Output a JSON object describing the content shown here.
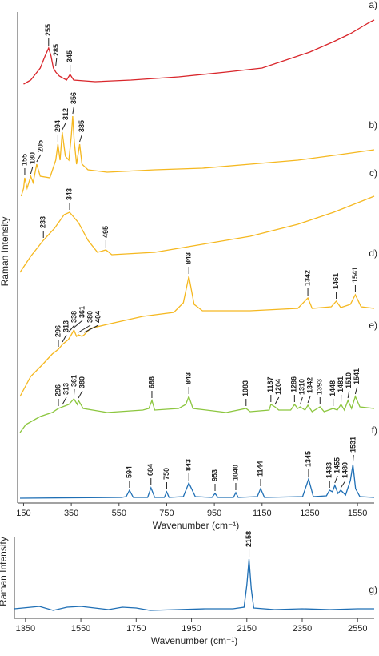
{
  "chart_data": [
    {
      "type": "line",
      "xlabel": "Wavenumber (cm⁻¹)",
      "ylabel": "Raman Intensity",
      "xlim": [
        125,
        1620
      ],
      "ylim": [
        0,
        625
      ],
      "xticks": [
        150,
        350,
        550,
        750,
        950,
        1150,
        1350,
        1550
      ],
      "series": [
        {
          "name": "a)",
          "color": "#d9262b",
          "x": [
            150,
            180,
            220,
            240,
            255,
            265,
            275,
            285,
            300,
            330,
            345,
            360,
            450,
            600,
            800,
            1000,
            1150,
            1250,
            1350,
            1450,
            1520,
            1560,
            1600,
            1620
          ],
          "values": [
            520,
            525,
            540,
            555,
            565,
            555,
            540,
            535,
            530,
            525,
            532,
            525,
            523,
            525,
            529,
            535,
            540,
            550,
            560,
            573,
            583,
            590,
            597,
            600
          ],
          "peaks": [
            255,
            285,
            345
          ]
        },
        {
          "name": "b)",
          "color": "#f5b820",
          "x": [
            140,
            150,
            155,
            165,
            180,
            190,
            205,
            220,
            260,
            285,
            294,
            303,
            312,
            325,
            340,
            350,
            356,
            362,
            372,
            385,
            395,
            420,
            500,
            700,
            900,
            1100,
            1300,
            1500,
            1620
          ],
          "values": [
            380,
            390,
            403,
            390,
            405,
            397,
            420,
            405,
            403,
            425,
            445,
            425,
            460,
            430,
            425,
            455,
            480,
            450,
            420,
            445,
            420,
            413,
            410,
            413,
            415,
            420,
            425,
            433,
            438
          ],
          "peaks": [
            155,
            180,
            205,
            294,
            312,
            356,
            385
          ]
        },
        {
          "name": "c)",
          "color": "#f5b820",
          "x": [
            135,
            180,
            233,
            280,
            320,
            343,
            380,
            420,
            460,
            495,
            520,
            700,
            900,
            1100,
            1300,
            1450,
            1620
          ],
          "values": [
            285,
            305,
            325,
            340,
            357,
            360,
            347,
            325,
            310,
            313,
            307,
            310,
            320,
            330,
            345,
            360,
            380
          ],
          "peaks": [
            233,
            343,
            495
          ]
        },
        {
          "name": "d)",
          "color": "#f5b820",
          "x": [
            135,
            180,
            230,
            270,
            296,
            313,
            338,
            350,
            361,
            372,
            380,
            395,
            404,
            430,
            500,
            650,
            780,
            820,
            843,
            865,
            900,
            1100,
            1300,
            1342,
            1360,
            1440,
            1461,
            1480,
            1520,
            1541,
            1565,
            1620
          ],
          "values": [
            130,
            155,
            170,
            183,
            189,
            195,
            201,
            207,
            213,
            205,
            207,
            205,
            207,
            215,
            220,
            230,
            235,
            247,
            280,
            245,
            237,
            237,
            240,
            253,
            240,
            242,
            249,
            241,
            245,
            257,
            242,
            240
          ],
          "peaks": [
            296,
            313,
            338,
            361,
            380,
            404,
            843,
            1342,
            1461,
            1541
          ]
        },
        {
          "name": "e)",
          "color": "#8cc63f",
          "x": [
            135,
            160,
            220,
            270,
            296,
            313,
            340,
            361,
            375,
            380,
            400,
            500,
            650,
            675,
            688,
            700,
            800,
            830,
            843,
            860,
            1000,
            1083,
            1100,
            1180,
            1187,
            1204,
            1220,
            1270,
            1286,
            1300,
            1310,
            1330,
            1342,
            1360,
            1393,
            1410,
            1448,
            1465,
            1481,
            1495,
            1510,
            1525,
            1541,
            1560,
            1620
          ],
          "values": [
            85,
            95,
            105,
            110,
            115,
            117,
            120,
            127,
            120,
            125,
            115,
            110,
            113,
            115,
            125,
            113,
            115,
            120,
            130,
            115,
            110,
            115,
            111,
            113,
            120,
            117,
            113,
            113,
            120,
            115,
            117,
            113,
            119,
            111,
            117,
            111,
            115,
            113,
            120,
            113,
            125,
            115,
            130,
            117,
            115
          ],
          "peaks": [
            296,
            313,
            361,
            380,
            688,
            843,
            1083,
            1187,
            1204,
            1286,
            1310,
            1342,
            1393,
            1448,
            1481,
            1510,
            1541
          ]
        },
        {
          "name": "f)",
          "color": "#1f6fb5",
          "x": [
            135,
            560,
            580,
            594,
            610,
            670,
            684,
            700,
            740,
            750,
            760,
            820,
            843,
            870,
            940,
            953,
            965,
            1030,
            1040,
            1050,
            1130,
            1144,
            1160,
            1320,
            1345,
            1365,
            1420,
            1433,
            1445,
            1455,
            1468,
            1480,
            1500,
            1520,
            1531,
            1542,
            1560,
            1620
          ],
          "values": [
            3,
            4,
            5,
            13,
            4,
            4,
            16,
            4,
            4,
            11,
            4,
            5,
            22,
            5,
            4,
            9,
            4,
            4,
            10,
            4,
            5,
            15,
            4,
            5,
            27,
            5,
            6,
            13,
            11,
            19,
            9,
            13,
            7,
            25,
            45,
            15,
            5,
            4
          ],
          "peaks": [
            594,
            684,
            750,
            843,
            953,
            1040,
            1144,
            1345,
            1433,
            1455,
            1480,
            1531
          ]
        }
      ]
    },
    {
      "type": "line",
      "xlabel": "Wavenumber (cm⁻¹)",
      "ylabel": "Raman Intensity",
      "xlim": [
        1310,
        2610
      ],
      "ylim": [
        0,
        117
      ],
      "xticks": [
        1350,
        1550,
        1750,
        1950,
        2150,
        2350,
        2550
      ],
      "series": [
        {
          "name": "g)",
          "color": "#1f6fb5",
          "x": [
            1310,
            1400,
            1450,
            1500,
            1550,
            1600,
            1650,
            1700,
            1750,
            1800,
            1900,
            2000,
            2100,
            2140,
            2150,
            2158,
            2166,
            2175,
            2250,
            2350,
            2450,
            2550,
            2610
          ],
          "values": [
            12,
            15,
            10,
            14,
            15,
            13,
            11,
            14,
            13,
            10,
            11,
            12,
            12,
            14,
            42,
            74,
            37,
            13,
            11,
            12,
            11,
            12,
            12
          ],
          "peaks": [
            2158
          ]
        }
      ]
    }
  ]
}
